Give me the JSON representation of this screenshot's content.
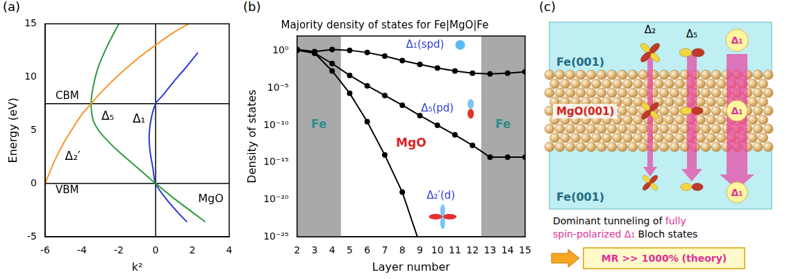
{
  "chart_data": [
    {
      "panel_label": "(a)",
      "type": "line",
      "x_label": "k²",
      "y_label": "Energy (eV)",
      "xlim": [
        -6,
        4
      ],
      "xticks": [
        -6,
        -4,
        -2,
        0,
        2,
        4
      ],
      "ylim": [
        -5,
        15
      ],
      "yticks": [
        -5,
        0,
        5,
        10,
        15
      ],
      "grid": false,
      "marker": "none",
      "line_style": "solid",
      "reference_lines": [
        {
          "axis": "y",
          "value": 7.5,
          "label": "CBM"
        },
        {
          "axis": "y",
          "value": 0,
          "label": "VBM"
        },
        {
          "axis": "x",
          "value": 0
        }
      ],
      "annotations": [
        {
          "text": "MgO"
        }
      ],
      "series": [
        {
          "name": "Δ₂′",
          "color": "#f5962a",
          "x": [
            -6,
            -5.5,
            -5,
            -4.5,
            -4,
            -3.5,
            -3,
            -2,
            -1,
            0,
            1,
            1.8
          ],
          "values": [
            0,
            2.1,
            3.8,
            5.2,
            6.5,
            7.5,
            8.5,
            10.2,
            11.7,
            13.0,
            14.2,
            15
          ]
        },
        {
          "name": "Δ₅",
          "color": "#2a9a3a",
          "x": [
            -2,
            -2.6,
            -3.1,
            -3.4,
            -3.5,
            -3.4,
            -3.1,
            -2.6,
            -2,
            -1,
            0,
            1,
            2,
            2.7
          ],
          "values": [
            15,
            13,
            11,
            9,
            7.5,
            6,
            5,
            4,
            3,
            1.5,
            0,
            -1.4,
            -2.7,
            -3.6
          ]
        },
        {
          "name": "Δ₁",
          "color": "#2a3ad8",
          "x": [
            2.3,
            1.6,
            0.9,
            0.4,
            0,
            -0.25,
            -0.35,
            -0.3,
            -0.15,
            0,
            0.6,
            1.2,
            1.7
          ],
          "values": [
            12.3,
            10.8,
            9.4,
            8.3,
            7.5,
            6,
            4.5,
            3,
            1.5,
            0,
            -1.5,
            -2.7,
            -3.6
          ]
        }
      ]
    },
    {
      "panel_label": "(b)",
      "type": "line",
      "title": "Majority density of states for Fe|MgO|Fe",
      "x_label": "Layer number",
      "y_label": "Density of states",
      "log": "y",
      "grid": false,
      "marker": "circle",
      "line_style": "solid",
      "x": [
        2,
        3,
        4,
        5,
        6,
        7,
        8,
        9,
        10,
        11,
        12,
        13,
        14,
        15
      ],
      "xlim": [
        2,
        15
      ],
      "xticks": [
        2,
        3,
        4,
        5,
        6,
        7,
        8,
        9,
        10,
        11,
        12,
        13,
        14,
        15
      ],
      "ylim": [
        1e-25,
        100
      ],
      "yticks": [
        {
          "value": 1,
          "label": "10⁰"
        },
        {
          "value": 1e-05,
          "label": "10⁻⁵"
        },
        {
          "value": 1e-10,
          "label": "10⁻¹⁰"
        },
        {
          "value": 1e-15,
          "label": "10⁻¹⁵"
        },
        {
          "value": 1e-20,
          "label": "10⁻²⁰"
        },
        {
          "value": 1e-25,
          "label": "10⁻²⁵"
        }
      ],
      "regions": [
        {
          "from": 2,
          "to": 4.5,
          "label": "Fe",
          "color": "#a9a9a9"
        },
        {
          "from": 12.5,
          "to": 15,
          "label": "Fe",
          "color": "#a9a9a9"
        }
      ],
      "annotations": [
        {
          "text": "MgO"
        }
      ],
      "series": [
        {
          "name": "Δ₁(spd)",
          "color": "#000000",
          "values": [
            1.5,
            0.8,
            1.5,
            1.2,
            0.6,
            0.2,
            0.05,
            0.015,
            0.005,
            0.002,
            0.001,
            0.0008,
            0.001,
            0.0015
          ]
        },
        {
          "name": "Δ₅(pd)",
          "color": "#000000",
          "values": [
            1.2,
            0.5,
            0.02,
            0.0005,
            2e-05,
            1e-06,
            5e-08,
            2e-09,
            1e-10,
            5e-12,
            2e-13,
            5e-15,
            5e-15,
            5e-15
          ]
        },
        {
          "name": "Δ₂′(d)",
          "color": "#000000",
          "values": [
            1.5,
            0.5,
            0.002,
            2e-06,
            3e-10,
            1e-14,
            1e-19,
            1e-26,
            null,
            null,
            null,
            null,
            null,
            null
          ]
        }
      ]
    }
  ],
  "diagram": {
    "panel_label": "(c)",
    "top": "Fe(001)",
    "barrier": "MgO(001)",
    "bottom": "Fe(001)",
    "states": [
      "Δ₂",
      "Δ₅",
      "Δ₁"
    ],
    "caption": [
      [
        {
          "text": "Dominant tunneling of"
        },
        {
          "text": "fully",
          "emphasis": true
        }
      ],
      [
        {
          "text": "spin-polarized Δ₁",
          "emphasis": true
        },
        {
          "text": "Bloch states"
        }
      ]
    ],
    "result": "MR >> 1000% (theory)"
  }
}
